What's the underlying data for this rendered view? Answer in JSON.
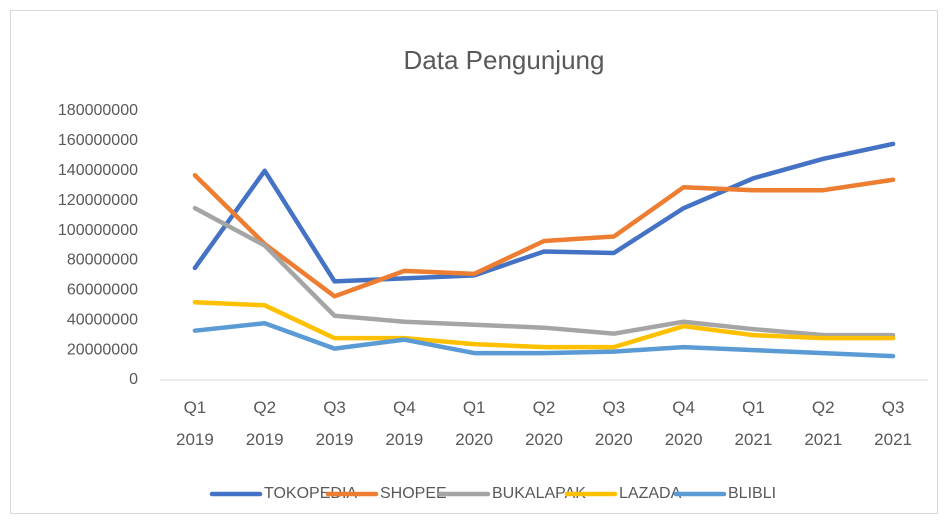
{
  "chart_data": {
    "type": "line",
    "title": "Data Pengunjung",
    "categories": [
      "Q1 2019",
      "Q2 2019",
      "Q3 2019",
      "Q4 2019",
      "Q1 2020",
      "Q2 2020",
      "Q3 2020",
      "Q4 2020",
      "Q1 2021",
      "Q2 2021",
      "Q3 2021"
    ],
    "series": [
      {
        "name": "TOKOPEDIA",
        "color": "#4472c4",
        "values": [
          75000000,
          140000000,
          66000000,
          68000000,
          70000000,
          86000000,
          85000000,
          115000000,
          135000000,
          148000000,
          158000000
        ]
      },
      {
        "name": "SHOPEE",
        "color": "#ed7d31",
        "values": [
          137000000,
          91000000,
          56000000,
          73000000,
          71000000,
          93000000,
          96000000,
          129000000,
          127000000,
          127000000,
          134000000
        ]
      },
      {
        "name": "BUKALAPAK",
        "color": "#a5a5a5",
        "values": [
          115000000,
          90000000,
          43000000,
          39000000,
          37000000,
          35000000,
          31000000,
          39000000,
          34000000,
          30000000,
          30000000
        ]
      },
      {
        "name": "LAZADA",
        "color": "#ffc000",
        "values": [
          52000000,
          50000000,
          28000000,
          28000000,
          24000000,
          22000000,
          22000000,
          36000000,
          30000000,
          28000000,
          28000000
        ]
      },
      {
        "name": "BLIBLI",
        "color": "#5b9bd5",
        "values": [
          33000000,
          38000000,
          21000000,
          27000000,
          18000000,
          18000000,
          19000000,
          22000000,
          20000000,
          18000000,
          16000000
        ]
      }
    ],
    "ylim": [
      0,
      180000000
    ],
    "yticks": [
      0,
      20000000,
      40000000,
      60000000,
      80000000,
      100000000,
      120000000,
      140000000,
      160000000,
      180000000
    ],
    "grid": false,
    "legend": "bottom"
  }
}
